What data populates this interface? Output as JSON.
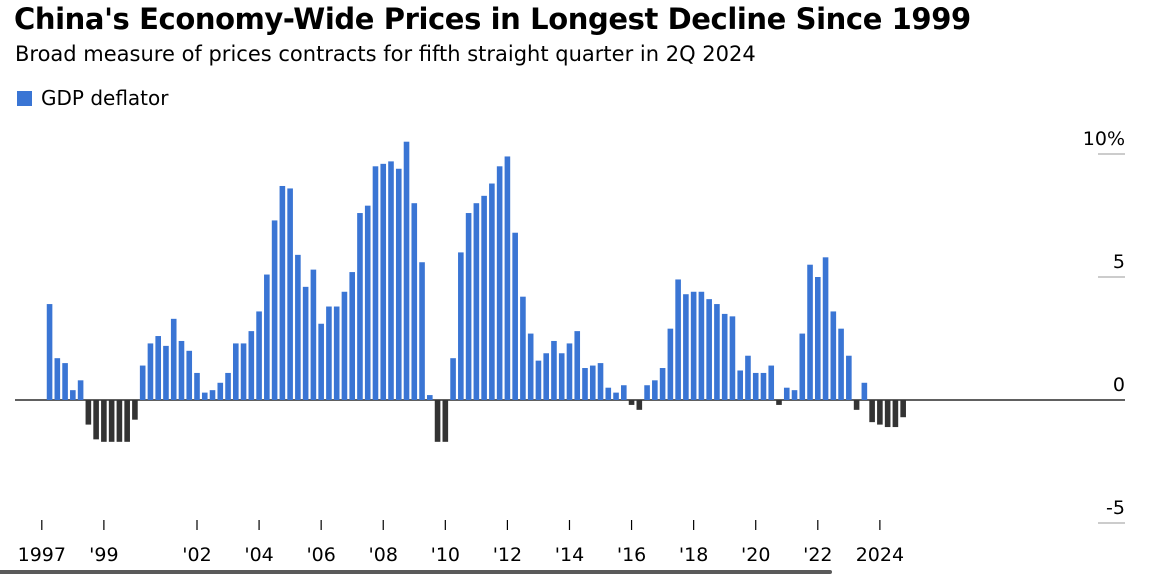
{
  "title": "China's Economy-Wide Prices in Longest Decline Since 1999",
  "subtitle": "Broad measure of prices contracts for fifth straight quarter in 2Q 2024",
  "colors": {
    "positive": "#3a75d4",
    "negative": "#333333",
    "axis": "#000000",
    "grid": "#999999"
  },
  "chart_data": {
    "type": "bar",
    "title": "China's Economy-Wide Prices in Longest Decline Since 1999",
    "subtitle": "Broad measure of prices contracts for fifth straight quarter in 2Q 2024",
    "legend": [
      "GDP deflator"
    ],
    "legend_position": "top-left",
    "xlabel": "",
    "ylabel": "",
    "ylim": [
      -5,
      10
    ],
    "y_ticks": [
      {
        "value": 10,
        "label": "10%"
      },
      {
        "value": 5,
        "label": "5"
      },
      {
        "value": 0,
        "label": "0"
      },
      {
        "value": -5,
        "label": "-5"
      }
    ],
    "x_ticks": [
      "1997",
      "'99",
      "'02",
      "'04",
      "'06",
      "'08",
      "'10",
      "'12",
      "'14",
      "'16",
      "'18",
      "'20",
      "'22",
      "2024"
    ],
    "start": "1997 Q2",
    "frequency": "quarterly",
    "series": [
      {
        "name": "GDP deflator",
        "values": [
          3.9,
          1.7,
          1.5,
          0.4,
          0.8,
          -1.0,
          -1.6,
          -1.7,
          -1.7,
          -1.7,
          -1.7,
          -0.8,
          1.4,
          2.3,
          2.6,
          2.2,
          3.3,
          2.4,
          2.0,
          1.1,
          0.3,
          0.4,
          0.7,
          1.1,
          2.3,
          2.3,
          2.8,
          3.6,
          5.1,
          7.3,
          8.7,
          8.6,
          5.9,
          4.6,
          5.3,
          3.1,
          3.8,
          3.8,
          4.4,
          5.2,
          7.6,
          7.9,
          9.5,
          9.6,
          9.7,
          9.4,
          10.5,
          8.0,
          5.6,
          0.2,
          -1.7,
          -1.7,
          1.7,
          6.0,
          7.6,
          8.0,
          8.3,
          8.8,
          9.5,
          9.9,
          6.8,
          4.2,
          2.7,
          1.6,
          1.9,
          2.4,
          1.9,
          2.3,
          2.8,
          1.3,
          1.4,
          1.5,
          0.5,
          0.3,
          0.6,
          -0.2,
          -0.4,
          0.6,
          0.8,
          1.3,
          2.9,
          4.9,
          4.3,
          4.4,
          4.4,
          4.1,
          3.9,
          3.5,
          3.4,
          1.2,
          1.8,
          1.1,
          1.1,
          1.4,
          -0.2,
          0.5,
          0.4,
          2.7,
          5.5,
          5.0,
          5.8,
          3.6,
          2.9,
          1.8,
          -0.4,
          0.7,
          -0.9,
          -1.0,
          -1.1,
          -1.1,
          -0.7
        ]
      }
    ]
  }
}
